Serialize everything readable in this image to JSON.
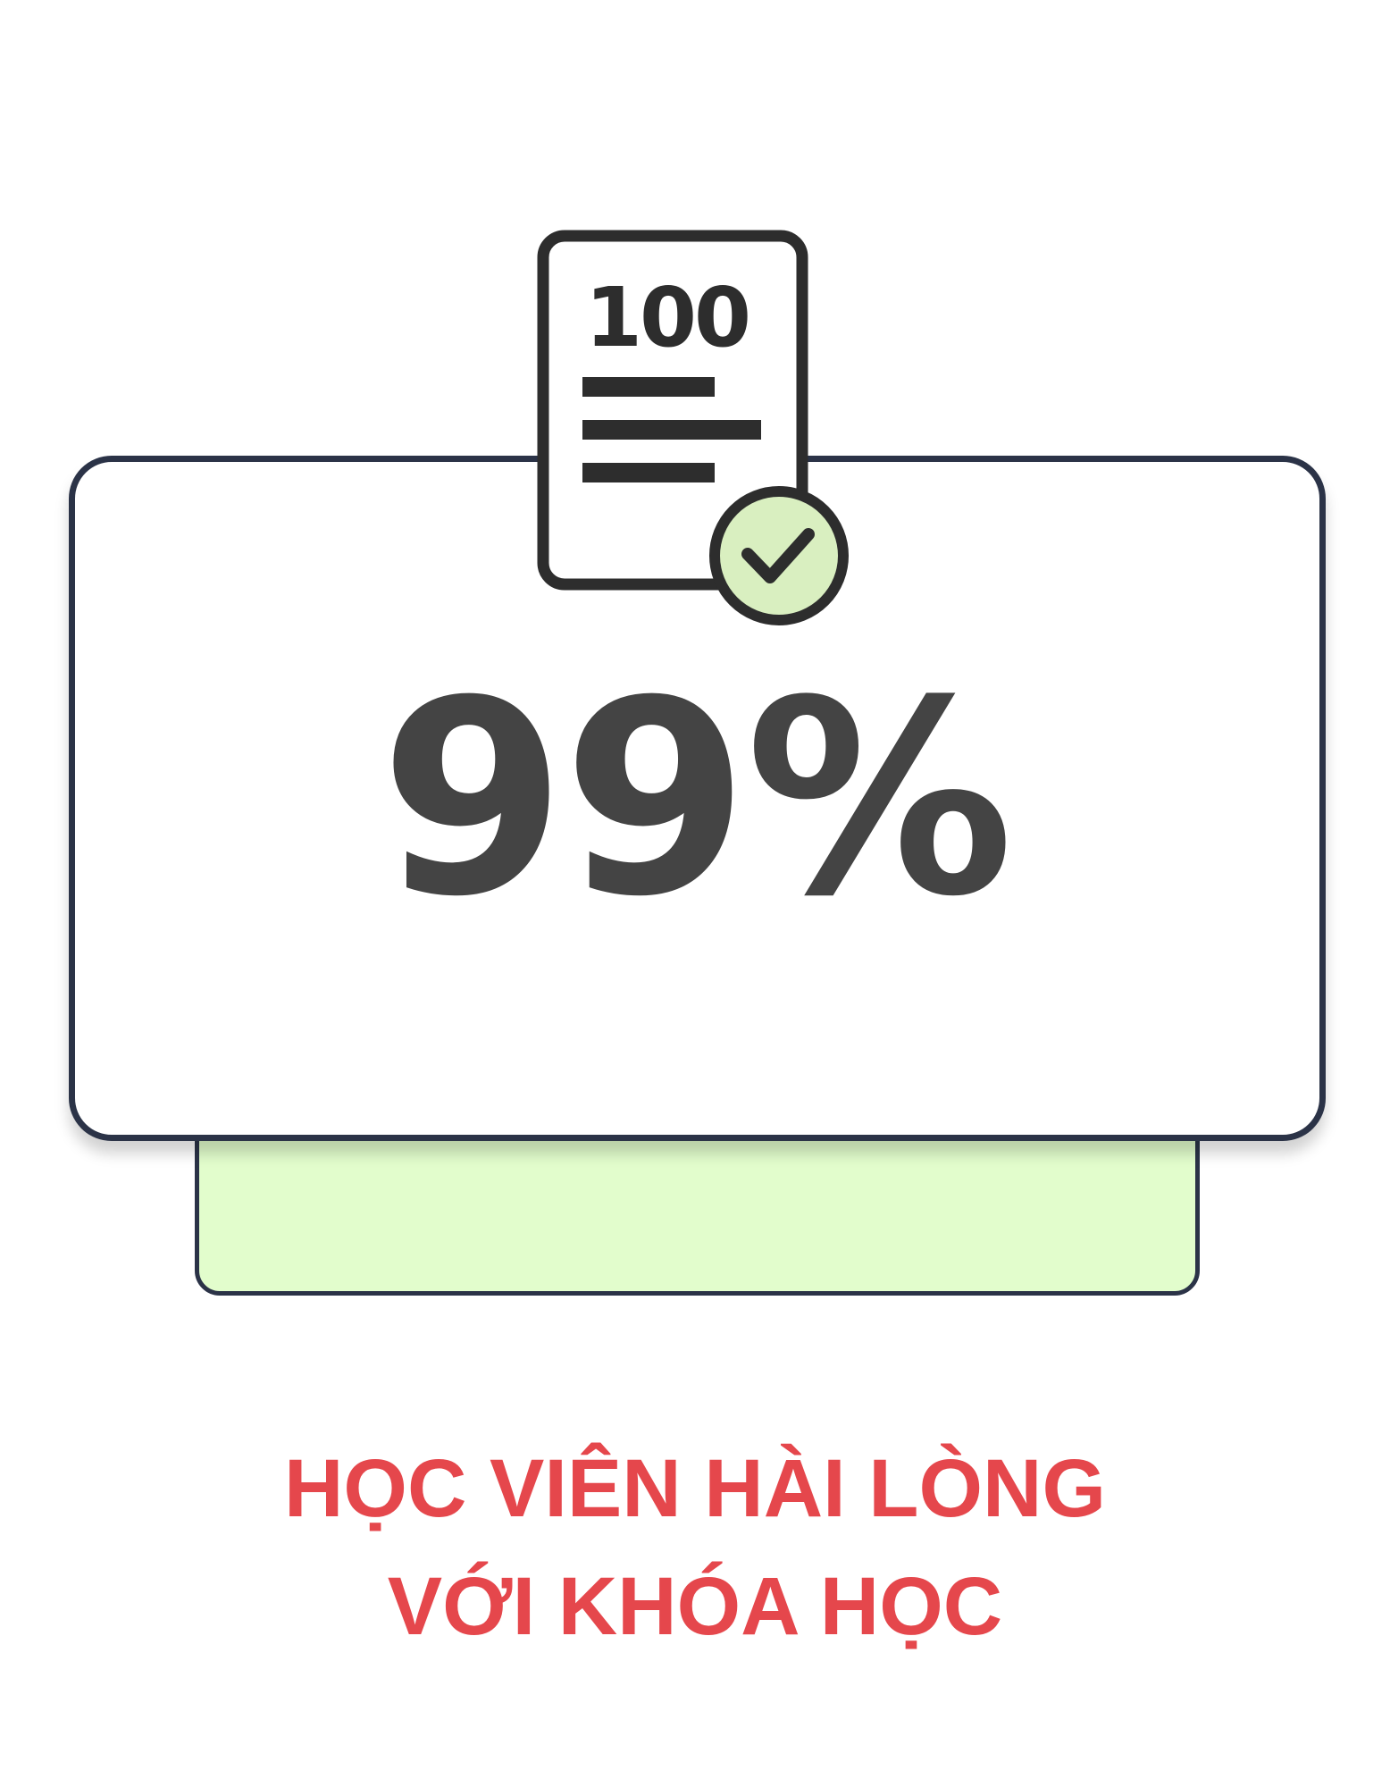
{
  "stat": {
    "value": "99%"
  },
  "caption": {
    "line1": "HỌC VIÊN HÀI LÒNG",
    "line2": "VỚI KHÓA HỌC"
  },
  "icon": {
    "name": "document-check-icon",
    "score_text": "100"
  },
  "colors": {
    "caption": "#e5474c",
    "card_border": "#2b3347",
    "back_card_fill": "#e2fdcc",
    "stat_text": "#444444",
    "check_badge_fill": "#d9efc0"
  }
}
